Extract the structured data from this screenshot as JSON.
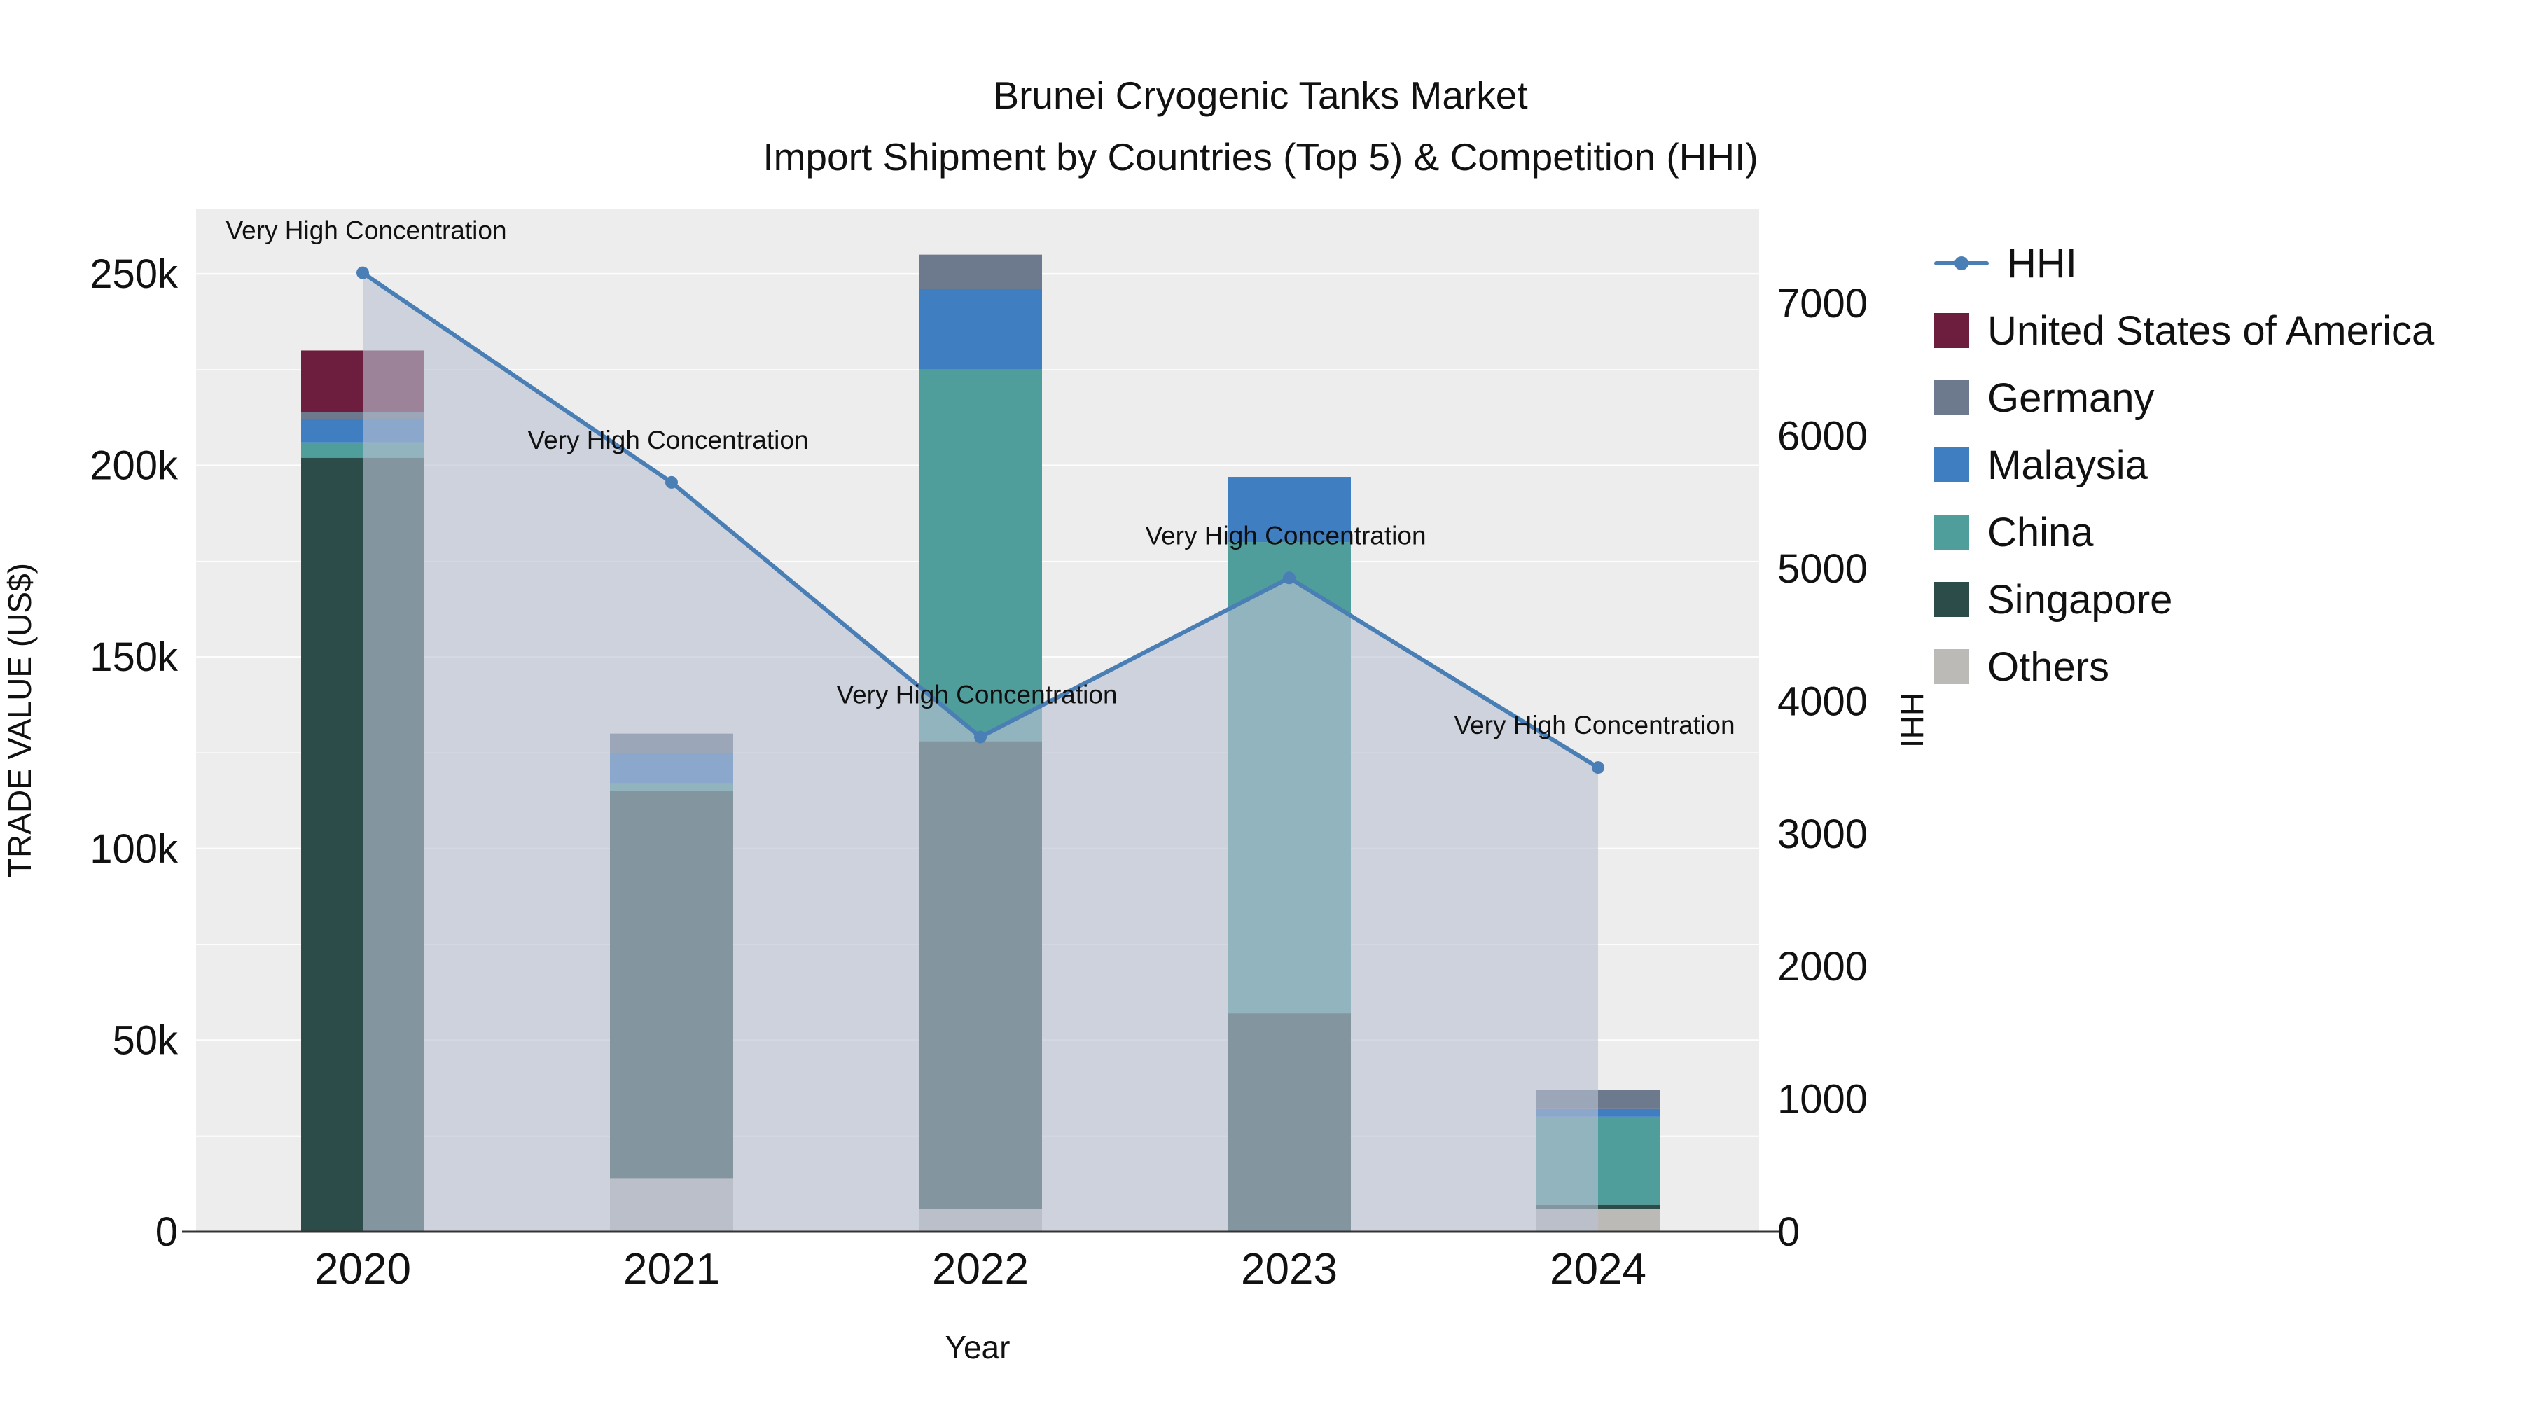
{
  "title": {
    "line1": "Brunei Cryogenic Tanks Market",
    "line2": "Import Shipment by Countries (Top 5) & Competition (HHI)"
  },
  "chart_data": {
    "type": "stacked-bar+line",
    "x_title": "Year",
    "categories": [
      "2020",
      "2021",
      "2022",
      "2023",
      "2024"
    ],
    "bar_value_unit": "US$ thousand",
    "bar_series_bottom_to_top": [
      {
        "name": "Others",
        "color": "#bcbab7",
        "values": [
          0,
          14,
          6,
          0,
          6
        ]
      },
      {
        "name": "Singapore",
        "color": "#2b4c49",
        "values": [
          202,
          101,
          122,
          57,
          1
        ]
      },
      {
        "name": "China",
        "color": "#4f9e9b",
        "values": [
          4,
          2,
          97,
          123,
          23
        ]
      },
      {
        "name": "Malaysia",
        "color": "#3f7fc1",
        "values": [
          6,
          8,
          21,
          17,
          2
        ]
      },
      {
        "name": "Germany",
        "color": "#6d7a8e",
        "values": [
          2,
          5,
          9,
          0,
          5
        ]
      },
      {
        "name": "United States of America",
        "color": "#6d1e3e",
        "values": [
          16,
          0,
          0,
          0,
          0
        ]
      }
    ],
    "line_series": {
      "name": "HHI",
      "color": "#4a7fb5",
      "fill": "#b9c2d4",
      "fill_opacity": 0.62,
      "values": [
        7230,
        5650,
        3730,
        4930,
        3500
      ]
    },
    "annotations": [
      "Very High Concentration",
      "Very High Concentration",
      "Very High Concentration",
      "Very High Concentration",
      "Very High Concentration"
    ],
    "y_left": {
      "title": "TRADE VALUE (US$)",
      "max": 267,
      "ticks": [
        {
          "v": 0,
          "label": "0"
        },
        {
          "v": 50,
          "label": "50k"
        },
        {
          "v": 100,
          "label": "100k"
        },
        {
          "v": 150,
          "label": "150k"
        },
        {
          "v": 200,
          "label": "200k"
        },
        {
          "v": 250,
          "label": "250k"
        }
      ]
    },
    "y_right": {
      "title": "HHI",
      "max": 7714,
      "ticks": [
        {
          "v": 0,
          "label": "0"
        },
        {
          "v": 1000,
          "label": "1000"
        },
        {
          "v": 2000,
          "label": "2000"
        },
        {
          "v": 3000,
          "label": "3000"
        },
        {
          "v": 4000,
          "label": "4000"
        },
        {
          "v": 5000,
          "label": "5000"
        },
        {
          "v": 6000,
          "label": "6000"
        },
        {
          "v": 7000,
          "label": "7000"
        }
      ]
    },
    "legend": {
      "items": [
        {
          "label": "HHI",
          "type": "line",
          "color": "#4a7fb5"
        },
        {
          "label": "United States of America",
          "type": "swatch",
          "color": "#6d1e3e"
        },
        {
          "label": "Germany",
          "type": "swatch",
          "color": "#6d7a8e"
        },
        {
          "label": "Malaysia",
          "type": "swatch",
          "color": "#3f7fc1"
        },
        {
          "label": "China",
          "type": "swatch",
          "color": "#4f9e9b"
        },
        {
          "label": "Singapore",
          "type": "swatch",
          "color": "#2b4c49"
        },
        {
          "label": "Others",
          "type": "swatch",
          "color": "#bcbab7"
        }
      ]
    },
    "plot_bg": "#ededed",
    "grid_color": "#ffffff"
  }
}
